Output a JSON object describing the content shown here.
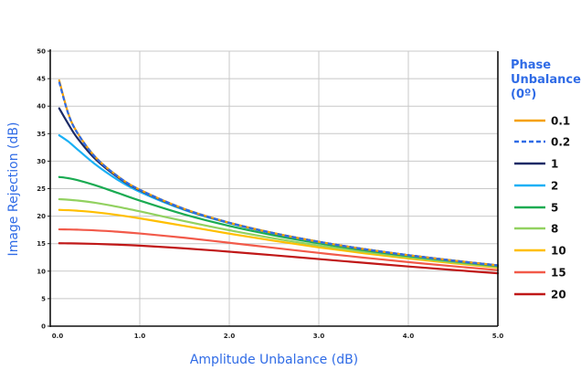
{
  "chart_data": {
    "type": "line",
    "title": "",
    "xlabel": "Amplitude Unbalance (dB)",
    "ylabel": "Image Rejection (dB)",
    "xlim": [
      0,
      5
    ],
    "ylim": [
      0,
      50
    ],
    "xticks": [
      "0.0",
      "1.0",
      "2.0",
      "3.0",
      "4.0",
      "5.0"
    ],
    "yticks": [
      "0",
      "5",
      "10",
      "15",
      "20",
      "25",
      "30",
      "35",
      "40",
      "45",
      "50"
    ],
    "grid": true,
    "legend": {
      "title_lines": [
        "Phase",
        "Unbalance",
        "(0º)"
      ],
      "placement": "right"
    },
    "x": [
      0.1,
      0.2,
      0.3,
      0.5,
      0.75,
      1.0,
      1.5,
      2.0,
      2.5,
      3.0,
      3.5,
      4.0,
      4.5,
      5.0
    ],
    "series": [
      {
        "name": "0.1",
        "color": "#f5a000",
        "dashed": false,
        "values": [
          44.7,
          38.75,
          35.24,
          30.82,
          27.3,
          24.81,
          21.3,
          18.81,
          16.9,
          15.34,
          14.03,
          12.91,
          11.93,
          11.05
        ]
      },
      {
        "name": "0.2",
        "color": "#2f6be6",
        "dashed": true,
        "values": [
          44.42,
          38.68,
          35.21,
          30.8,
          27.29,
          24.8,
          21.3,
          18.81,
          16.9,
          15.34,
          14.03,
          12.91,
          11.93,
          11.05
        ]
      },
      {
        "name": "1",
        "color": "#1b2a66",
        "dashed": false,
        "values": [
          39.61,
          36.81,
          34.27,
          30.44,
          27.13,
          24.71,
          21.25,
          18.79,
          16.88,
          15.33,
          14.02,
          12.9,
          11.92,
          11.05
        ]
      },
      {
        "name": "2",
        "color": "#1ab0f5",
        "dashed": false,
        "values": [
          34.71,
          33.59,
          32.2,
          29.46,
          26.64,
          24.42,
          21.12,
          18.72,
          16.83,
          15.29,
          14.0,
          12.88,
          11.9,
          11.03
        ]
      },
      {
        "name": "5",
        "color": "#1aab52",
        "dashed": false,
        "values": [
          27.12,
          26.91,
          26.57,
          25.63,
          24.24,
          22.83,
          20.3,
          18.23,
          16.51,
          15.07,
          13.83,
          12.75,
          11.8,
          10.95
        ]
      },
      {
        "name": "8",
        "color": "#92d160",
        "dashed": false,
        "values": [
          23.08,
          22.99,
          22.85,
          22.43,
          21.71,
          20.87,
          19.1,
          17.44,
          15.96,
          14.67,
          13.53,
          12.51,
          11.61,
          10.79
        ]
      },
      {
        "name": "10",
        "color": "#ffbf00",
        "dashed": false,
        "values": [
          21.14,
          21.09,
          20.99,
          20.71,
          20.22,
          19.6,
          18.22,
          16.82,
          15.52,
          14.33,
          13.26,
          12.3,
          11.44,
          10.65
        ]
      },
      {
        "name": "15",
        "color": "#f25a4a",
        "dashed": false,
        "values": [
          17.6,
          17.58,
          17.54,
          17.41,
          17.17,
          16.85,
          16.07,
          15.16,
          14.23,
          13.32,
          12.46,
          11.65,
          10.89,
          10.19
        ]
      },
      {
        "name": "20",
        "color": "#c01818",
        "dashed": false,
        "values": [
          15.07,
          15.06,
          15.03,
          14.96,
          14.82,
          14.64,
          14.14,
          13.54,
          12.88,
          12.2,
          11.52,
          10.85,
          10.22,
          9.61
        ]
      }
    ]
  }
}
